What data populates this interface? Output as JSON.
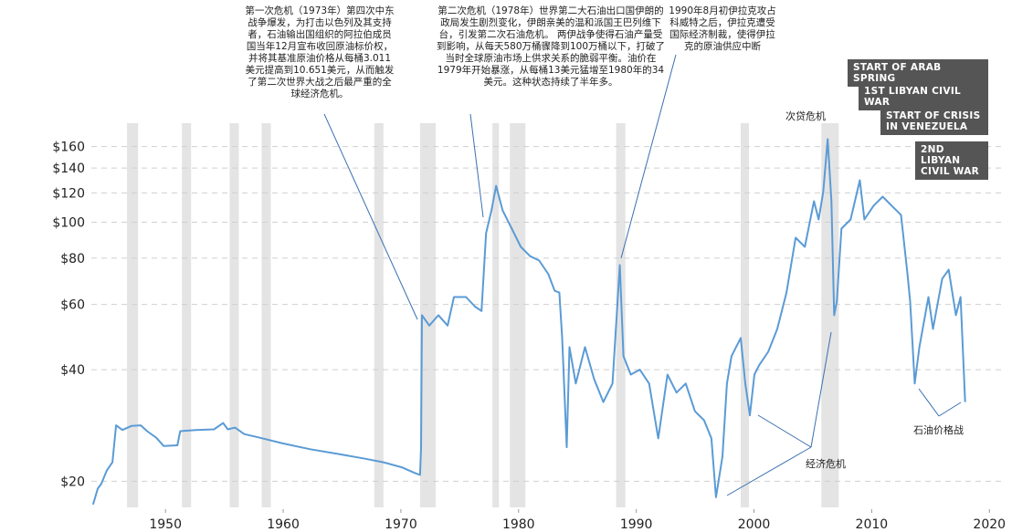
{
  "chart_data": {
    "type": "line",
    "xlim": [
      1943.7,
      2021.3
    ],
    "xticks": [
      1950,
      1960,
      1970,
      1980,
      1990,
      2000,
      2010,
      2020
    ],
    "ylim": [
      17,
      185
    ],
    "log_scale": true,
    "grid": true,
    "yticks": [
      {
        "value": 20,
        "label": "$20"
      },
      {
        "value": 40,
        "label": "$40"
      },
      {
        "value": 60,
        "label": "$60"
      },
      {
        "value": 80,
        "label": "$80"
      },
      {
        "value": 100,
        "label": "$100"
      },
      {
        "value": 120,
        "label": "$120"
      },
      {
        "value": 140,
        "label": "$140"
      },
      {
        "value": 160,
        "label": "$160"
      }
    ],
    "recessions": [
      [
        1946.73,
        1947.67
      ],
      [
        1951.4,
        1952.18
      ],
      [
        1955.45,
        1956.23
      ],
      [
        1958.17,
        1958.95
      ],
      [
        1967.74,
        1968.52
      ],
      [
        1971.63,
        1972.96
      ],
      [
        1977.78,
        1978.33
      ],
      [
        1979.26,
        1980.58
      ],
      [
        1988.29,
        1989.07
      ],
      [
        1998.87,
        1999.57
      ],
      [
        2005.72,
        2007.2
      ]
    ],
    "recession_color": "#e4e4e4",
    "x": [
      1943.85,
      1944.24,
      1944.55,
      1945.02,
      1945.49,
      1945.8,
      1946.34,
      1947.12,
      1947.9,
      1948.44,
      1949.22,
      1949.84,
      1951.01,
      1951.25,
      1952.57,
      1954.12,
      1954.9,
      1955.29,
      1955.91,
      1956.69,
      1958.02,
      1959.96,
      1962.3,
      1964.63,
      1966.96,
      1968.52,
      1970.08,
      1971.25,
      1971.63,
      1971.71,
      1971.79,
      1972.41,
      1973.19,
      1973.97,
      1974.51,
      1975.53,
      1976.3,
      1976.85,
      1977.24,
      1977.7,
      1978.09,
      1978.64,
      1979.42,
      1980.19,
      1980.97,
      1981.75,
      1982.53,
      1983.07,
      1983.46,
      1983.7,
      1984.09,
      1984.32,
      1984.86,
      1985.64,
      1986.42,
      1987.2,
      1987.98,
      1988.6,
      1988.91,
      1989.53,
      1990.3,
      1991.09,
      1991.87,
      1992.65,
      1993.42,
      1994.2,
      1994.98,
      1995.76,
      1996.38,
      1996.77,
      1997.32,
      1997.7,
      1998.09,
      1998.48,
      1998.87,
      1999.26,
      1999.65,
      2000.04,
      2000.43,
      2001.21,
      2001.98,
      2002.76,
      2003.54,
      2004.32,
      2005.1,
      2005.49,
      2005.88,
      2006.26,
      2006.58,
      2006.81,
      2007.04,
      2007.43,
      2008.21,
      2008.99,
      2009.38,
      2010.16,
      2010.93,
      2011.71,
      2012.49,
      2013.04,
      2013.27,
      2013.66,
      2014.05,
      2014.82,
      2015.21,
      2015.99,
      2016.54,
      2017.16,
      2017.55,
      2017.94
    ],
    "series": [
      {
        "color": "#5b9bd5",
        "values": [
          17.3,
          19.1,
          19.7,
          21.4,
          22.5,
          28.3,
          27.5,
          28.2,
          28.3,
          27.3,
          26.2,
          24.9,
          25.0,
          27.3,
          27.5,
          27.6,
          28.7,
          27.6,
          27.9,
          26.8,
          26.2,
          25.3,
          24.4,
          23.7,
          23.0,
          22.5,
          21.8,
          21.0,
          20.8,
          24.6,
          56.1,
          52.6,
          56.1,
          52.6,
          62.8,
          62.8,
          59.2,
          57.6,
          93.4,
          107.6,
          125.4,
          107.6,
          96.1,
          85.8,
          81.0,
          78.8,
          72.4,
          65.3,
          64.6,
          48.7,
          24.7,
          46.0,
          36.7,
          46.0,
          37.7,
          32.7,
          36.7,
          76.6,
          43.5,
          38.8,
          40.0,
          36.7,
          26.1,
          38.8,
          34.7,
          36.7,
          30.9,
          29.2,
          26.1,
          18.1,
          23.3,
          36.7,
          43.5,
          46.0,
          48.7,
          36.7,
          30.1,
          38.8,
          41.1,
          44.7,
          51.5,
          64.6,
          90.8,
          85.8,
          113.9,
          101.7,
          120.5,
          167.5,
          113.9,
          56.1,
          61.1,
          96.1,
          101.7,
          129.8,
          101.7,
          110.7,
          117.2,
          110.7,
          104.6,
          72.4,
          61.1,
          36.7,
          46.0,
          62.8,
          51.5,
          70.4,
          74.4,
          56.1,
          62.8,
          32.7
        ]
      }
    ],
    "annotations": [
      "第一次危机（1973年）第四次中东战争爆发，为打击以色列及其支持者，石油输出国组织的阿拉伯成员国当年12月宣布收回原油标价权，并将其基准原油价格从每桶3.011美元提高到10.651美元，从而触发了第二次世界大战之后最严重的全球经济危机。",
      "第二次危机（1978年）世界第二大石油出口国伊朗的政局发生剧烈变化，伊朗亲美的温和派国王巴列维下台，引发第二次石油危机。 两伊战争使得石油产量受到影响，从每天580万桶骤降到100万桶以下，打破了当时全球原油市场上供求关系的脆弱平衡。油价在1979年开始暴涨，从每桶13美元猛增至1980年的34美元。这种状态持续了半年多。",
      "1990年8月初伊拉克攻占科威特之后，伊拉克遭受国际经济制裁，使得伊拉克的原油供应中断",
      "次贷危机",
      "经济危机",
      "石油价格战"
    ],
    "event_labels": [
      "START OF ARAB SPRING",
      "1ST LIBYAN CIVIL WAR",
      "START OF CRISIS IN VENEZUELA",
      "2ND LIBYAN CIVIL WAR"
    ]
  }
}
